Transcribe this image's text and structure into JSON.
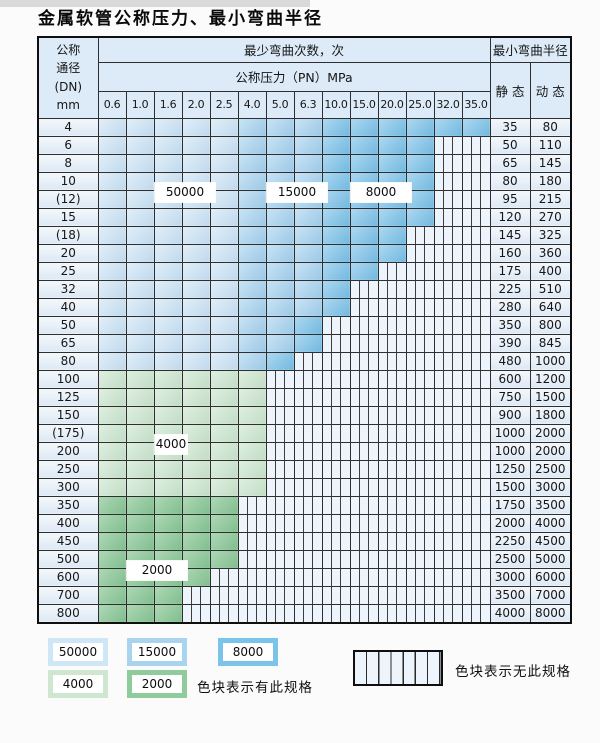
{
  "title": "金属软管公称压力、最小弯曲半径",
  "table": {
    "header": {
      "dn_lines": [
        "公称",
        "通径",
        "(DN)",
        "mm"
      ],
      "bend_times": "最少弯曲次数，次",
      "pressure_title": "公称压力（PN）MPa",
      "pressures": [
        "0.6",
        "1.0",
        "1.6",
        "2.0",
        "2.5",
        "4.0",
        "5.0",
        "6.3",
        "10.0",
        "15.0",
        "20.0",
        "25.0",
        "32.0",
        "35.0"
      ],
      "radius_title": "最小弯曲半径",
      "static_label": "静 态",
      "dynamic_label": "动 态"
    },
    "rows": [
      {
        "dn": "4",
        "until": "35.0",
        "static": "35",
        "dynamic": "80",
        "shade": "blue"
      },
      {
        "dn": "6",
        "until": "25.0",
        "static": "50",
        "dynamic": "110",
        "shade": "blue"
      },
      {
        "dn": "8",
        "until": "25.0",
        "static": "65",
        "dynamic": "145",
        "shade": "blue"
      },
      {
        "dn": "10",
        "until": "25.0",
        "static": "80",
        "dynamic": "180",
        "shade": "blue"
      },
      {
        "dn": "(12)",
        "until": "25.0",
        "static": "95",
        "dynamic": "215",
        "shade": "blue"
      },
      {
        "dn": "15",
        "until": "25.0",
        "static": "120",
        "dynamic": "270",
        "shade": "blue"
      },
      {
        "dn": "(18)",
        "until": "20.0",
        "static": "145",
        "dynamic": "325",
        "shade": "blue"
      },
      {
        "dn": "20",
        "until": "20.0",
        "static": "160",
        "dynamic": "360",
        "shade": "blue"
      },
      {
        "dn": "25",
        "until": "15.0",
        "static": "175",
        "dynamic": "400",
        "shade": "blue"
      },
      {
        "dn": "32",
        "until": "10.0",
        "static": "225",
        "dynamic": "510",
        "shade": "blue"
      },
      {
        "dn": "40",
        "until": "10.0",
        "static": "280",
        "dynamic": "640",
        "shade": "blue"
      },
      {
        "dn": "50",
        "until": "6.3",
        "static": "350",
        "dynamic": "800",
        "shade": "blue"
      },
      {
        "dn": "65",
        "until": "6.3",
        "static": "390",
        "dynamic": "845",
        "shade": "blue"
      },
      {
        "dn": "80",
        "until": "5.0",
        "static": "480",
        "dynamic": "1000",
        "shade": "blue"
      },
      {
        "dn": "100",
        "until": "4.0",
        "static": "600",
        "dynamic": "1200",
        "shade": "green-light"
      },
      {
        "dn": "125",
        "until": "4.0",
        "static": "750",
        "dynamic": "1500",
        "shade": "green-light"
      },
      {
        "dn": "150",
        "until": "4.0",
        "static": "900",
        "dynamic": "1800",
        "shade": "green-light"
      },
      {
        "dn": "(175)",
        "until": "4.0",
        "static": "1000",
        "dynamic": "2000",
        "shade": "green-light"
      },
      {
        "dn": "200",
        "until": "4.0",
        "static": "1000",
        "dynamic": "2000",
        "shade": "green-light"
      },
      {
        "dn": "250",
        "until": "4.0",
        "static": "1250",
        "dynamic": "2500",
        "shade": "green-light"
      },
      {
        "dn": "300",
        "until": "4.0",
        "static": "1500",
        "dynamic": "3000",
        "shade": "green-light"
      },
      {
        "dn": "350",
        "until": "2.5",
        "static": "1750",
        "dynamic": "3500",
        "shade": "green-dark"
      },
      {
        "dn": "400",
        "until": "2.5",
        "static": "2000",
        "dynamic": "4000",
        "shade": "green-dark"
      },
      {
        "dn": "450",
        "until": "2.5",
        "static": "2250",
        "dynamic": "4500",
        "shade": "green-dark"
      },
      {
        "dn": "500",
        "until": "2.5",
        "static": "2500",
        "dynamic": "5000",
        "shade": "green-dark"
      },
      {
        "dn": "600",
        "until": "2.0",
        "static": "3000",
        "dynamic": "6000",
        "shade": "green-dark"
      },
      {
        "dn": "700",
        "until": "1.6",
        "static": "3500",
        "dynamic": "7000",
        "shade": "green-dark"
      },
      {
        "dn": "800",
        "until": "1.6",
        "static": "4000",
        "dynamic": "8000",
        "shade": "green-dark"
      }
    ],
    "overlays": [
      {
        "text": "50000",
        "col_start": 2,
        "col_end": 3,
        "row_boundary": 4
      },
      {
        "text": "15000",
        "col_start": 6,
        "col_end": 7,
        "row_boundary": 4
      },
      {
        "text": "8000",
        "col_start": 9,
        "col_end": 10,
        "row_boundary": 4
      },
      {
        "text": "4000",
        "col_start": 2,
        "col_end": 2,
        "row_boundary": 18
      },
      {
        "text": "2000",
        "col_start": 1,
        "col_end": 2,
        "row_boundary": 25
      }
    ]
  },
  "legend": {
    "blocks": [
      {
        "label": "50000",
        "value_class": "lg-50000"
      },
      {
        "label": "15000",
        "value_class": "lg-15000"
      },
      {
        "label": "8000",
        "value_class": "lg-8000"
      },
      {
        "label": "4000",
        "value_class": "lg-4000"
      },
      {
        "label": "2000",
        "value_class": "lg-2000"
      }
    ],
    "has_spec_text": "色块表示有此规格",
    "no_spec_text": "色块表示无此规格"
  },
  "colors": {
    "band_50000": "#cfe6f6",
    "band_15000": "#a8d4f0",
    "band_8000": "#7cc3e9",
    "band_4000": "#cfe7d1",
    "band_2000": "#8fcb9b",
    "header_bg": "#dcebf7",
    "row_label_bg": "#e9f1fa",
    "hatch_bg": "#eef4fb",
    "grid_line": "#2f2f2f"
  }
}
